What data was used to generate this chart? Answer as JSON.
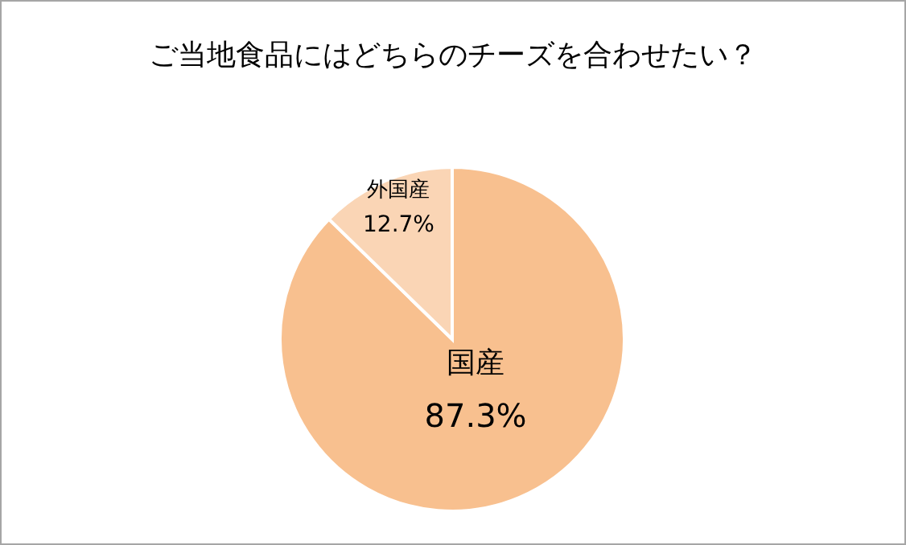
{
  "chart_data": {
    "type": "pie",
    "title": "ご当地食品にはどちらのチーズを合わせたい？",
    "categories": [
      "国産",
      "外国産"
    ],
    "values": [
      87.3,
      12.7
    ],
    "colors": [
      "#f8c08f",
      "#fad5b5"
    ],
    "value_labels": [
      "87.3%",
      "12.7%"
    ]
  }
}
